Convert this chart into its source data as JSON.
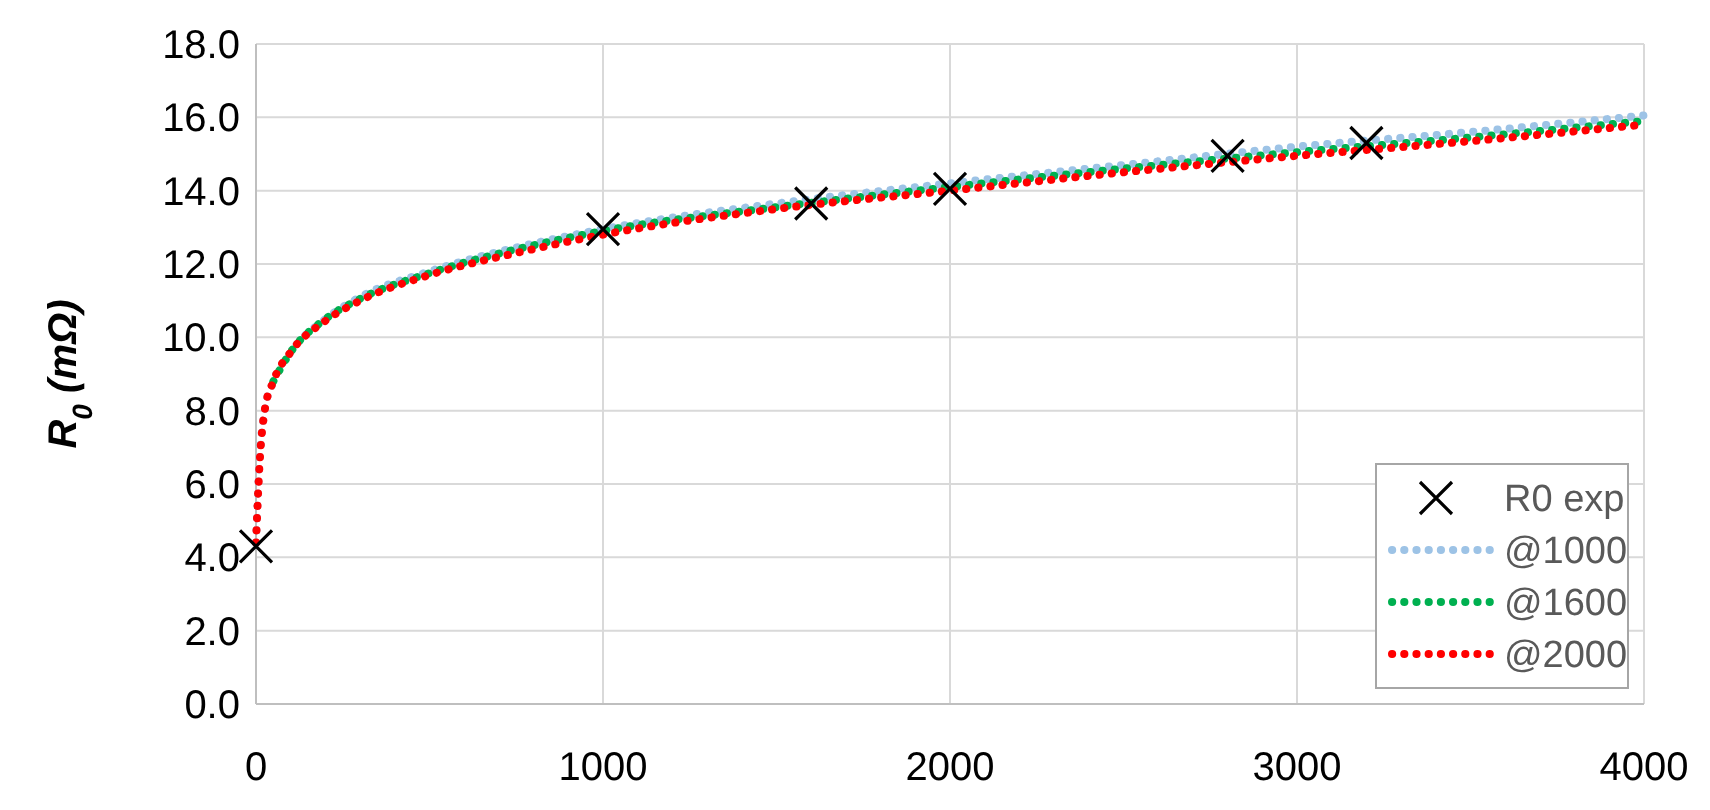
{
  "chart_data": {
    "type": "line",
    "ylabel": "R$_{0}$ (mΩ)",
    "xlim": [
      0,
      4000
    ],
    "ylim": [
      0,
      18
    ],
    "xticks": [
      0,
      1000,
      2000,
      3000,
      4000
    ],
    "yticks": [
      {
        "value": 0,
        "label": "0.0"
      },
      {
        "value": 2,
        "label": "2.0"
      },
      {
        "value": 4,
        "label": "4.0"
      },
      {
        "value": 6,
        "label": "6.0"
      },
      {
        "value": 8,
        "label": "8.0"
      },
      {
        "value": 10,
        "label": "10.0"
      },
      {
        "value": 12,
        "label": "12.0"
      },
      {
        "value": 14,
        "label": "14.0"
      },
      {
        "value": 16,
        "label": "16.0"
      },
      {
        "value": 18,
        "label": "18.0"
      }
    ],
    "grid": true,
    "legend": "bottom right",
    "series": [
      {
        "name": "R0 exp",
        "type": "scatter",
        "marker": "cross",
        "color": "#000000",
        "x": [
          0,
          1000,
          1600,
          2000,
          2800,
          3200
        ],
        "values": [
          4.3,
          12.95,
          13.65,
          14.05,
          14.95,
          15.3
        ]
      },
      {
        "name": "@1000",
        "type": "line",
        "line_style": "dotted",
        "color": "#9dc3e6",
        "x": [
          0,
          10,
          25,
          50,
          100,
          200,
          300,
          500,
          750,
          1000,
          1500,
          2000,
          2500,
          3000,
          3500,
          4000
        ],
        "values": [
          4.4,
          6.6,
          8.0,
          8.8,
          9.6,
          10.5,
          11.1,
          11.8,
          12.45,
          12.95,
          13.65,
          14.2,
          14.7,
          15.2,
          15.6,
          16.05
        ]
      },
      {
        "name": "@1600",
        "type": "line",
        "line_style": "dotted",
        "color": "#00b050",
        "x": [
          50,
          100,
          200,
          300,
          500,
          750,
          1000,
          1500,
          2000,
          2500,
          3000,
          3500,
          4000
        ],
        "values": [
          8.8,
          9.6,
          10.5,
          11.05,
          11.75,
          12.4,
          12.9,
          13.55,
          14.1,
          14.6,
          15.05,
          15.45,
          15.9
        ]
      },
      {
        "name": "@2000",
        "type": "line",
        "line_style": "dotted",
        "color": "#ff0000",
        "x": [
          0,
          10,
          25,
          50,
          100,
          200,
          300,
          500,
          750,
          1000,
          1500,
          2000,
          2500,
          3000,
          3500,
          4000
        ],
        "values": [
          4.4,
          6.5,
          8.0,
          8.8,
          9.6,
          10.45,
          11.0,
          11.7,
          12.3,
          12.8,
          13.5,
          14.0,
          14.5,
          14.95,
          15.35,
          15.8
        ]
      }
    ]
  }
}
